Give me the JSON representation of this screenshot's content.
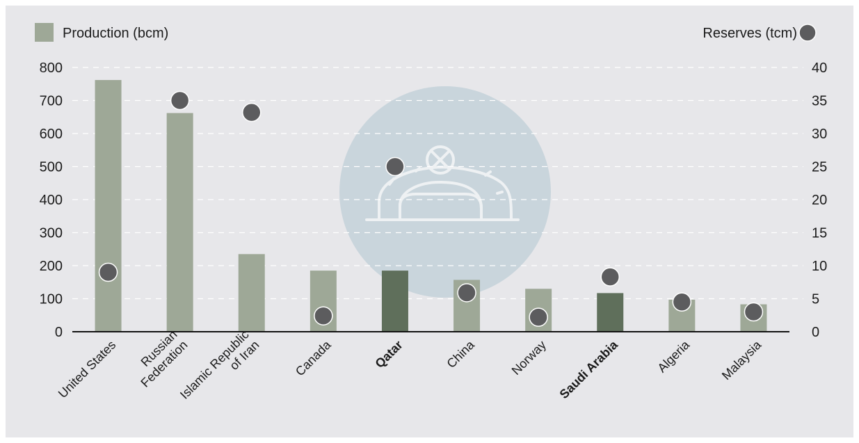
{
  "colors": {
    "background": "#e7e7ea",
    "bar": "#9ea897",
    "bar_highlight": "#5f6f5b",
    "dot": "#5c5c5e",
    "watermark_circle": "#c9d5dc",
    "watermark_icon": "#eef1f3",
    "grid": "#ffffff"
  },
  "legend": {
    "production_label": "Production (bcm)",
    "reserves_label": "Reserves (tcm)"
  },
  "watermark": {
    "icon": "gas-dome-icon"
  },
  "chart_data": {
    "type": "bar",
    "categories": [
      "United States",
      "Russian Federation",
      "Islamic Republic of Iran",
      "Canada",
      "Qatar",
      "China",
      "Norway",
      "Saudi Arabia",
      "Algeria",
      "Malaysia"
    ],
    "category_lines": [
      [
        "United States"
      ],
      [
        "Russian",
        "Federation"
      ],
      [
        "Islamic Republic",
        "of Iran"
      ],
      [
        "Canada"
      ],
      [
        "Qatar"
      ],
      [
        "China"
      ],
      [
        "Norway"
      ],
      [
        "Saudi Arabia"
      ],
      [
        "Algeria"
      ],
      [
        "Malaysia"
      ]
    ],
    "highlighted": [
      "Qatar",
      "Saudi Arabia"
    ],
    "series": [
      {
        "name": "Production (bcm)",
        "type": "bar",
        "axis": "left",
        "values": [
          762,
          662,
          235,
          185,
          185,
          157,
          130,
          117,
          97,
          83
        ]
      },
      {
        "name": "Reserves (tcm)",
        "type": "scatter",
        "axis": "right",
        "values": [
          9.0,
          35.0,
          33.2,
          2.4,
          25.0,
          5.9,
          2.2,
          8.3,
          4.5,
          3.0
        ]
      }
    ],
    "y_left": {
      "ylim": [
        0,
        800
      ],
      "ticks": [
        "0",
        "100",
        "200",
        "300",
        "400",
        "500",
        "600",
        "700",
        "800"
      ]
    },
    "y_right": {
      "ylim": [
        0,
        40
      ],
      "ticks": [
        "0",
        "5",
        "10",
        "15",
        "20",
        "25",
        "30",
        "35",
        "40"
      ]
    },
    "grid": true,
    "legend_position": "top"
  }
}
